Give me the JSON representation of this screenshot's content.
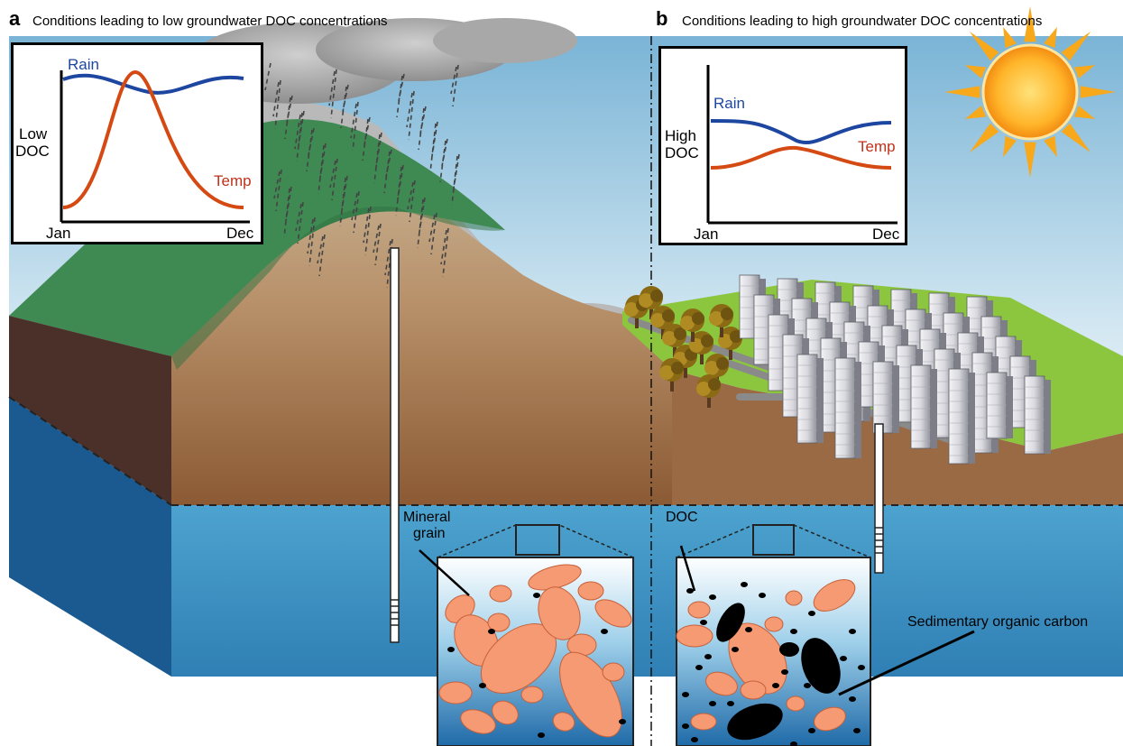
{
  "panel_a": {
    "letter": "a",
    "title": "Conditions leading to low groundwater DOC concentrations",
    "inset": {
      "y_label_line1": "Low",
      "y_label_line2": "DOC",
      "x_start": "Jan",
      "x_end": "Dec",
      "rain_label": "Rain",
      "temp_label": "Temp"
    },
    "callout": {
      "line1": "Mineral",
      "line2": "grain"
    }
  },
  "panel_b": {
    "letter": "b",
    "title": "Conditions leading to high groundwater DOC concentrations",
    "inset": {
      "y_label_line1": "High",
      "y_label_line2": "DOC",
      "x_start": "Jan",
      "x_end": "Dec",
      "rain_label": "Rain",
      "temp_label": "Temp"
    },
    "callout_doc": "DOC",
    "callout_soc": "Sedimentary organic carbon"
  },
  "colors": {
    "sky_top": "#7fb7d8",
    "grass": "#3f8a52",
    "soil": "#9a6a45",
    "groundwater": "#3f96c4",
    "rain_line": "#1d46a0",
    "temp_line": "#d44a12",
    "mineral_grain": "#f59a72",
    "city_grass": "#8cc63f",
    "sun": "#f7a81b"
  },
  "icons": [
    "sun-icon",
    "cloud-icon",
    "tree-icon",
    "building-icon",
    "well-icon"
  ]
}
